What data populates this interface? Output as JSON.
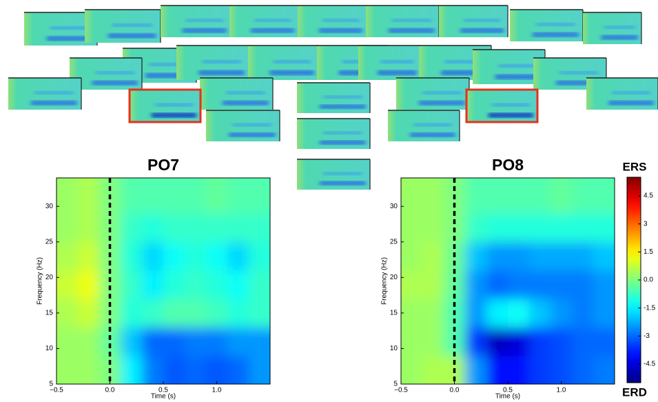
{
  "chart_data": [
    {
      "type": "heatmap",
      "title": "PO7",
      "x_label": "Time (s)",
      "y_label": "Frequency (Hz)",
      "x": [
        -0.4,
        -0.2,
        0.0,
        0.2,
        0.4,
        0.6,
        0.8,
        1.0,
        1.2,
        1.4
      ],
      "y": [
        7,
        11,
        15,
        19,
        23,
        27,
        31
      ],
      "z": [
        [
          0.3,
          0.3,
          0,
          -1.5,
          -2.8,
          -3.2,
          -3,
          -3.2,
          -3,
          -2.5
        ],
        [
          0.3,
          0.3,
          -0.3,
          -2,
          -3,
          -3,
          -2.8,
          -2.8,
          -2.5,
          -2.5
        ],
        [
          0.5,
          0.8,
          0,
          -1,
          -0.8,
          -0.5,
          -0.5,
          -0.7,
          -1,
          -0.8
        ],
        [
          0.8,
          1.2,
          0,
          -0.8,
          -1.5,
          -1,
          -0.8,
          -1,
          -1.3,
          -0.8
        ],
        [
          0.5,
          0.8,
          0,
          -1,
          -1.8,
          -1.3,
          -1,
          -1.3,
          -1.8,
          -1
        ],
        [
          0.3,
          0.5,
          0,
          -0.8,
          -1,
          -0.8,
          -0.8,
          -0.8,
          -0.8,
          -0.8
        ],
        [
          0.3,
          0.5,
          0,
          -0.5,
          -0.5,
          -0.5,
          -0.5,
          -0.3,
          -0.5,
          -0.5
        ]
      ],
      "xlim": [
        -0.5,
        1.5
      ],
      "ylim": [
        5,
        34
      ],
      "xticks": [
        {
          "value": -0.5,
          "label": "−0.5"
        },
        {
          "value": 0,
          "label": "0.0"
        },
        0.5,
        {
          "value": 1,
          "label": "1.0"
        }
      ],
      "yticks": [
        5,
        10,
        15,
        20,
        25,
        30
      ],
      "vlines": [
        0
      ]
    },
    {
      "type": "heatmap",
      "title": "PO8",
      "x_label": "Time (s)",
      "y_label": "Frequency (Hz)",
      "x": [
        -0.4,
        -0.2,
        0.0,
        0.2,
        0.4,
        0.6,
        0.8,
        1.0,
        1.2,
        1.4
      ],
      "y": [
        7,
        11,
        15,
        19,
        23,
        27,
        31
      ],
      "z": [
        [
          0.3,
          0.5,
          0.5,
          -2.5,
          -4,
          -4,
          -3.5,
          -3.3,
          -3,
          -2.8
        ],
        [
          0.3,
          0.3,
          -0.5,
          -3.5,
          -4.8,
          -4.5,
          -3.5,
          -3.3,
          -3,
          -3
        ],
        [
          0.3,
          0.3,
          -0.5,
          -2.5,
          -1.5,
          -1.3,
          -2,
          -2.5,
          -2.8,
          -2.5
        ],
        [
          0.5,
          0.5,
          -0.3,
          -2.5,
          -3,
          -2.8,
          -2.8,
          -2.8,
          -2.8,
          -2.5
        ],
        [
          0.3,
          0.5,
          -0.2,
          -2,
          -2.5,
          -2.5,
          -2.3,
          -2.3,
          -2.3,
          -2
        ],
        [
          0.3,
          0.3,
          0,
          -0.8,
          -1,
          -1,
          -1,
          -1,
          -1,
          -1
        ],
        [
          0.3,
          0.3,
          0,
          -0.5,
          -0.5,
          -0.5,
          -0.5,
          -0.3,
          -0.5,
          -0.5
        ]
      ],
      "xlim": [
        -0.5,
        1.5
      ],
      "ylim": [
        5,
        34
      ],
      "xticks": [
        {
          "value": -0.5,
          "label": "−0.5"
        },
        {
          "value": 0,
          "label": "0.0"
        },
        0.5,
        {
          "value": 1,
          "label": "1.0"
        }
      ],
      "yticks": [
        5,
        10,
        15,
        20,
        25,
        30
      ],
      "vlines": [
        0
      ]
    }
  ],
  "colorbar": {
    "top_label": "ERS",
    "bottom_label": "ERD",
    "lim": [
      -5.5,
      5.5
    ],
    "ticks": [
      4.5,
      3,
      1.5,
      {
        "value": 0,
        "label": "0.0"
      },
      -1.5,
      -3,
      -4.5
    ]
  }
}
